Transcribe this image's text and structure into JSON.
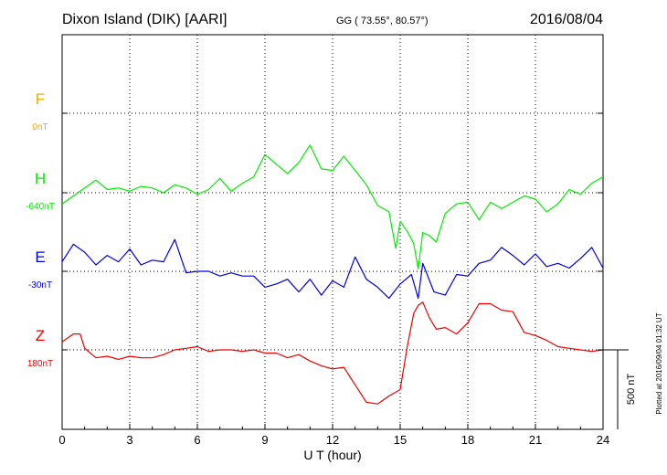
{
  "header": {
    "station": "Dixon Island (DIK)  [AARI]",
    "coords": "GG ( 73.55°,  80.57°)",
    "date": "2016/08/04"
  },
  "side_note": "Plotted at 2016/09/04 01:32 UT",
  "scale_label": "500 nT",
  "colors": {
    "F": "#f5a800",
    "H": "#00ee00",
    "E": "#0000dd",
    "Z": "#ee0000"
  },
  "chart_data": {
    "type": "line",
    "title": "Dixon Island (DIK)  [AARI]",
    "xlabel": "U T (hour)",
    "xlim": [
      0,
      24
    ],
    "xticks": [
      "0",
      "3",
      "6",
      "9",
      "12",
      "15",
      "18",
      "21",
      "24"
    ],
    "scale_bar_nT": 500,
    "series": [
      {
        "name": "F",
        "baseline_label": "0nT",
        "x": [],
        "y": []
      },
      {
        "name": "H",
        "baseline_label": "-640nT",
        "x": [
          0,
          0.5,
          1,
          1.5,
          2,
          2.5,
          3,
          3.5,
          4,
          4.5,
          5,
          5.5,
          6,
          6.5,
          7,
          7.5,
          8,
          8.5,
          9,
          9.5,
          10,
          10.5,
          11,
          11.5,
          12,
          12.5,
          13,
          13.5,
          14,
          14.5,
          14.8,
          15,
          15.3,
          15.6,
          15.8,
          16,
          16.3,
          16.6,
          17,
          17.5,
          18,
          18.5,
          19,
          19.5,
          20,
          20.5,
          21,
          21.5,
          22,
          22.5,
          23,
          23.5,
          24
        ],
        "y": [
          -70,
          -20,
          30,
          80,
          20,
          30,
          10,
          40,
          30,
          0,
          50,
          30,
          -10,
          20,
          90,
          10,
          60,
          100,
          240,
          180,
          120,
          190,
          300,
          150,
          140,
          230,
          140,
          50,
          -80,
          -120,
          -350,
          -180,
          -240,
          -320,
          -480,
          -250,
          -270,
          -310,
          -130,
          -70,
          -60,
          -170,
          -60,
          -100,
          -60,
          -20,
          -40,
          -120,
          -70,
          20,
          -10,
          60,
          100
        ]
      },
      {
        "name": "E",
        "baseline_label": "-30nT",
        "x": [
          0,
          0.5,
          1,
          1.5,
          2,
          2.5,
          3,
          3.5,
          4,
          4.5,
          5,
          5.5,
          6,
          6.5,
          7,
          7.5,
          8,
          8.5,
          9,
          9.5,
          10,
          10.5,
          11,
          11.5,
          12,
          12.5,
          13,
          13.5,
          14,
          14.5,
          15,
          15.5,
          15.8,
          16,
          16.5,
          17,
          17.5,
          18,
          18.5,
          19,
          19.5,
          20,
          20.5,
          21,
          21.5,
          22,
          22.5,
          23,
          23.5,
          24
        ],
        "y": [
          60,
          170,
          120,
          40,
          100,
          60,
          140,
          40,
          70,
          60,
          200,
          -10,
          0,
          0,
          -30,
          -10,
          -30,
          -30,
          -100,
          -80,
          -50,
          -130,
          -50,
          -150,
          -60,
          -100,
          90,
          -50,
          -100,
          -170,
          -80,
          -20,
          -170,
          50,
          -130,
          -150,
          -20,
          -30,
          50,
          70,
          150,
          100,
          40,
          110,
          30,
          50,
          20,
          80,
          150,
          20
        ]
      },
      {
        "name": "Z",
        "baseline_label": "180nT",
        "x": [
          0,
          0.5,
          0.8,
          1,
          1.5,
          2,
          2.5,
          3,
          3.5,
          4,
          4.5,
          5,
          5.5,
          6,
          6.5,
          7,
          7.5,
          8,
          8.5,
          9,
          9.5,
          10,
          10.5,
          11,
          11.5,
          12,
          12.5,
          13,
          13.5,
          14,
          14.5,
          15,
          15.3,
          15.6,
          15.8,
          16,
          16.3,
          16.6,
          17,
          17.5,
          18,
          18.5,
          19,
          19.5,
          20,
          20.5,
          21,
          21.5,
          22,
          22.5,
          23,
          23.5,
          24
        ],
        "y": [
          50,
          100,
          100,
          10,
          -50,
          -40,
          -60,
          -40,
          -50,
          -50,
          -30,
          0,
          10,
          20,
          -10,
          0,
          0,
          -10,
          0,
          -20,
          -20,
          -50,
          -30,
          -70,
          -100,
          -120,
          -110,
          -220,
          -330,
          -340,
          -290,
          -250,
          10,
          230,
          280,
          300,
          200,
          130,
          140,
          100,
          170,
          290,
          290,
          250,
          240,
          110,
          90,
          60,
          20,
          10,
          0,
          -10,
          0
        ]
      }
    ]
  }
}
